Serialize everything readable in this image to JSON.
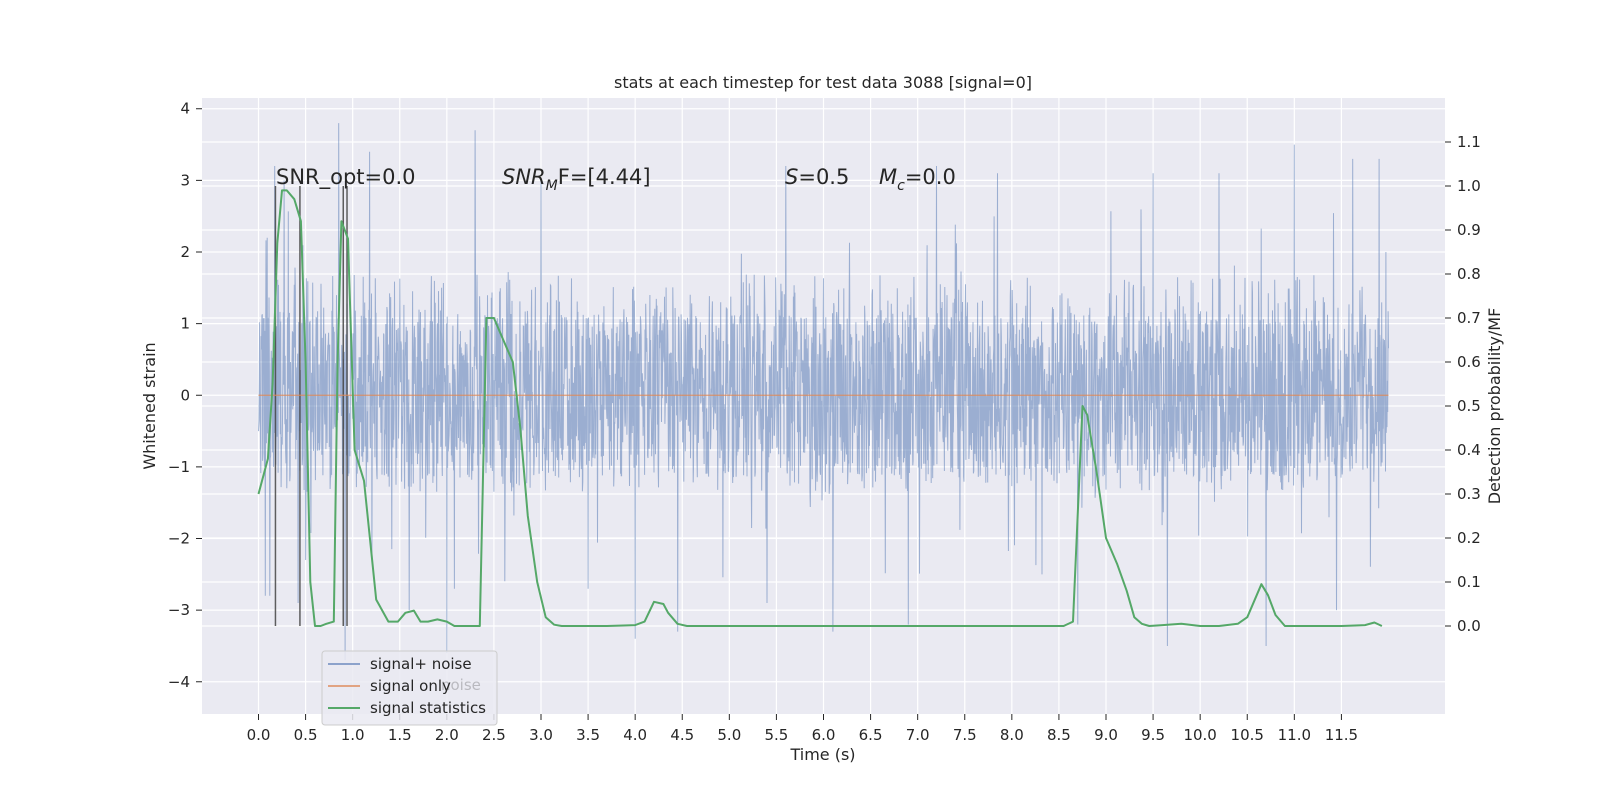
{
  "chart_data": {
    "type": "line",
    "title": "stats at each timestep for test data 3088 [signal=0]",
    "xlabel": "Time (s)",
    "ylabel": "Whitened strain",
    "y2label": "Detection probability/MF",
    "xlim": [
      -0.6,
      12.6
    ],
    "ylim": [
      -4.45,
      4.15
    ],
    "y2lim": [
      -0.2,
      1.2
    ],
    "grid": true,
    "background": "#eaeaf2",
    "xticks": [
      "0.0",
      "0.5",
      "1.0",
      "1.5",
      "2.0",
      "2.5",
      "3.0",
      "3.5",
      "4.0",
      "4.5",
      "5.0",
      "5.5",
      "6.0",
      "6.5",
      "7.0",
      "7.5",
      "8.0",
      "8.5",
      "9.0",
      "9.5",
      "10.0",
      "10.5",
      "11.0",
      "11.5"
    ],
    "yticks": [
      "4",
      "3",
      "2",
      "1",
      "0",
      "−1",
      "−2",
      "−3",
      "−4"
    ],
    "y2ticks": [
      "1.1",
      "1.0",
      "0.9",
      "0.8",
      "0.7",
      "0.6",
      "0.5",
      "0.4",
      "0.3",
      "0.2",
      "0.1",
      "0.0"
    ],
    "annotations": {
      "snr_opt": "SNR_opt=0.0",
      "snr_mf_sym": "SNR",
      "snr_mf_sub": "M",
      "snr_mf_rest": "F=[4.44]",
      "s_sym": "S",
      "s_rest": "=0.5",
      "mc_sym": "M",
      "mc_sub": "c",
      "mc_rest": "=0.0"
    },
    "vertical_markers_s": [
      0.18,
      0.44,
      0.9,
      0.94
    ],
    "series": [
      {
        "name": "signal+ noise",
        "color": "#4c72b0",
        "duration_s": 12.0,
        "band": [
          -1.35,
          1.7
        ],
        "peaks": [
          [
            0.0,
            -0.5
          ],
          [
            0.07,
            -2.8
          ],
          [
            0.09,
            2.2
          ],
          [
            0.12,
            -2.8
          ],
          [
            0.17,
            3.2
          ],
          [
            0.27,
            3.0
          ],
          [
            0.42,
            -2.9
          ],
          [
            0.5,
            -2.3
          ],
          [
            0.85,
            3.8
          ],
          [
            0.92,
            -3.7
          ],
          [
            1.18,
            3.4
          ],
          [
            1.6,
            -3.0
          ],
          [
            2.0,
            -3.6
          ],
          [
            2.08,
            -2.7
          ],
          [
            2.3,
            3.7
          ],
          [
            3.0,
            3.0
          ],
          [
            3.5,
            -2.7
          ],
          [
            4.0,
            -3.4
          ],
          [
            4.45,
            -3.3
          ],
          [
            5.4,
            -2.9
          ],
          [
            5.6,
            3.2
          ],
          [
            6.1,
            -3.3
          ],
          [
            6.9,
            -3.2
          ],
          [
            7.2,
            3.2
          ],
          [
            7.85,
            3.1
          ],
          [
            8.7,
            -3.2
          ],
          [
            9.5,
            3.1
          ],
          [
            9.65,
            -3.5
          ],
          [
            10.2,
            3.1
          ],
          [
            10.7,
            -3.5
          ],
          [
            11.0,
            3.5
          ],
          [
            11.45,
            -3.0
          ],
          [
            11.62,
            3.3
          ],
          [
            11.9,
            3.3
          ],
          [
            11.97,
            2.0
          ]
        ],
        "values": []
      },
      {
        "name": "signal only",
        "color": "#dd8452",
        "x": [
          0,
          12.0
        ],
        "y": [
          0,
          0
        ]
      },
      {
        "name": "signal statistics",
        "color": "#55a868",
        "axis": "right",
        "x": [
          0.0,
          0.1,
          0.15,
          0.2,
          0.25,
          0.3,
          0.38,
          0.45,
          0.5,
          0.55,
          0.6,
          0.66,
          0.72,
          0.8,
          0.84,
          0.88,
          0.95,
          1.02,
          1.12,
          1.25,
          1.38,
          1.48,
          1.56,
          1.65,
          1.72,
          1.8,
          1.9,
          2.0,
          2.08,
          2.17,
          2.25,
          2.35,
          2.42,
          2.5,
          2.6,
          2.7,
          2.78,
          2.86,
          2.96,
          3.05,
          3.14,
          3.22,
          3.3,
          3.45,
          3.7,
          4.0,
          4.1,
          4.2,
          4.3,
          4.35,
          4.45,
          4.55,
          4.7,
          5.0,
          5.5,
          6.0,
          7.0,
          8.0,
          8.55,
          8.65,
          8.75,
          8.8,
          8.9,
          9.0,
          9.12,
          9.22,
          9.3,
          9.38,
          9.46,
          9.6,
          9.8,
          10.0,
          10.2,
          10.4,
          10.5,
          10.6,
          10.65,
          10.72,
          10.8,
          10.9,
          11.0,
          11.5,
          11.75,
          11.85,
          11.93
        ],
        "y": [
          0.3,
          0.38,
          0.55,
          0.87,
          0.99,
          0.99,
          0.97,
          0.92,
          0.6,
          0.1,
          0.0,
          0.0,
          0.005,
          0.01,
          0.6,
          0.92,
          0.88,
          0.4,
          0.33,
          0.06,
          0.01,
          0.01,
          0.03,
          0.035,
          0.01,
          0.01,
          0.015,
          0.01,
          0.0,
          0.0,
          0.0,
          0.0,
          0.7,
          0.7,
          0.65,
          0.6,
          0.45,
          0.25,
          0.1,
          0.02,
          0.003,
          0.0,
          0.0,
          0.0,
          0.0,
          0.002,
          0.01,
          0.055,
          0.05,
          0.03,
          0.005,
          0.0,
          0.0,
          0.0,
          0.0,
          0.0,
          0.0,
          0.0,
          0.0,
          0.01,
          0.5,
          0.48,
          0.35,
          0.2,
          0.14,
          0.08,
          0.02,
          0.005,
          0.0,
          0.002,
          0.005,
          0.0,
          0.0,
          0.005,
          0.02,
          0.07,
          0.095,
          0.07,
          0.025,
          0.0,
          0.0,
          0.0,
          0.002,
          0.008,
          0.0
        ]
      }
    ],
    "legend": {
      "placement": "lower-left",
      "entries": [
        "signal+ noise",
        "signal only",
        "signal statistics"
      ],
      "ghost_text": "noise"
    }
  }
}
